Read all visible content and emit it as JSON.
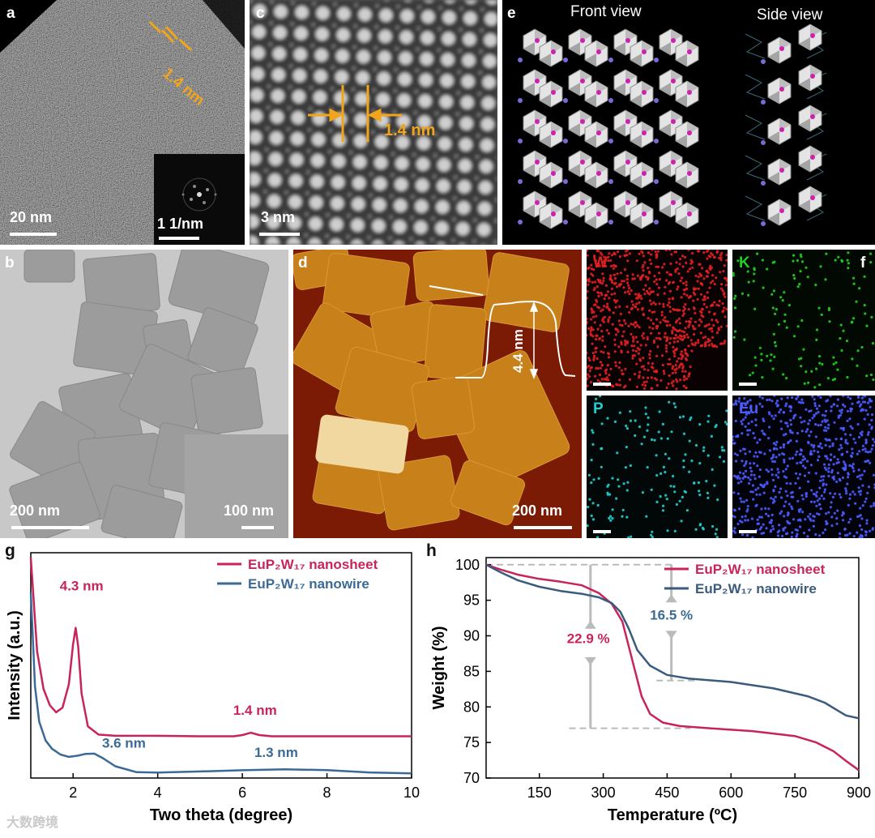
{
  "panels": {
    "a": {
      "label": "a",
      "scalebar": "20 nm",
      "spacing": "1.4 nm",
      "inset_scalebar": "1 1/nm"
    },
    "b": {
      "label": "b",
      "scalebar": "200 nm",
      "inset_scalebar": "100 nm"
    },
    "c": {
      "label": "c",
      "scalebar": "3 nm",
      "spacing": "1.4 nm"
    },
    "d": {
      "label": "d",
      "scalebar": "200 nm",
      "height": "4.4 nm"
    },
    "e": {
      "label": "e",
      "front_view": "Front view",
      "side_view": "Side view"
    },
    "f": {
      "label": "f",
      "elements": [
        "W",
        "K",
        "P",
        "Eu"
      ],
      "element_colors": [
        "#e02020",
        "#20d020",
        "#20d0d0",
        "#4a5cff"
      ]
    },
    "g": {
      "label": "g"
    },
    "h": {
      "label": "h"
    }
  },
  "chart_data": [
    {
      "type": "line",
      "panel": "g",
      "xlabel": "Two theta (degree)",
      "ylabel": "Intensity (a.u.)",
      "xlim": [
        1,
        10
      ],
      "xticks": [
        2,
        4,
        6,
        8,
        10
      ],
      "yticks": [],
      "legend_placement": "top-right",
      "series": [
        {
          "name": "EuP₂W₁₇ nanosheet",
          "color": "#c8245a",
          "x": [
            1.0,
            1.15,
            1.3,
            1.45,
            1.6,
            1.75,
            1.9,
            2.0,
            2.06,
            2.12,
            2.2,
            2.35,
            2.6,
            3.0,
            4.0,
            5.0,
            5.8,
            6.0,
            6.2,
            6.4,
            6.7,
            8.0,
            10.0
          ],
          "y": [
            100,
            60,
            44,
            37,
            34,
            36,
            46,
            63,
            70,
            62,
            42,
            28,
            24.5,
            24,
            24,
            23.8,
            23.8,
            24.3,
            25.3,
            24.3,
            23.8,
            23.8,
            23.8
          ]
        },
        {
          "name": "EuP₂W₁₇ nanowire",
          "color": "#3a6a95",
          "x": [
            1.0,
            1.1,
            1.2,
            1.35,
            1.5,
            1.7,
            1.9,
            2.1,
            2.3,
            2.5,
            2.7,
            3.0,
            3.5,
            4.0,
            5.0,
            6.0,
            7.0,
            8.0,
            9.0,
            10.0
          ],
          "y": [
            85,
            45,
            30,
            22,
            18.5,
            16,
            15,
            15.5,
            16.3,
            16.4,
            14.5,
            11,
            8.5,
            8.3,
            8.8,
            9.3,
            9.7,
            9.4,
            8.4,
            8.0
          ]
        }
      ],
      "annotations": [
        {
          "text": "4.3 nm",
          "x": 2.2,
          "y": 86,
          "color": "#c8245a"
        },
        {
          "text": "1.4 nm",
          "x": 6.3,
          "y": 33,
          "color": "#c8245a"
        },
        {
          "text": "3.6 nm",
          "x": 3.2,
          "y": 19,
          "color": "#3a6a95"
        },
        {
          "text": "1.3 nm",
          "x": 6.8,
          "y": 15,
          "color": "#3a6a95"
        }
      ]
    },
    {
      "type": "line",
      "panel": "h",
      "xlabel": "Temperature (ºC)",
      "ylabel": "Weight (%)",
      "xlim": [
        25,
        900
      ],
      "ylim": [
        70,
        101
      ],
      "xticks": [
        150,
        300,
        450,
        600,
        750,
        900
      ],
      "yticks": [
        70,
        75,
        80,
        85,
        90,
        95,
        100
      ],
      "legend_placement": "top-right",
      "series": [
        {
          "name": "EuP₂W₁₇ nanosheet",
          "color": "#c8245a",
          "x": [
            25,
            60,
            100,
            150,
            200,
            250,
            290,
            320,
            345,
            360,
            375,
            390,
            410,
            440,
            480,
            550,
            650,
            750,
            800,
            840,
            870,
            900
          ],
          "y": [
            100,
            99.3,
            98.6,
            98.0,
            97.6,
            97.1,
            96.0,
            94.5,
            92.0,
            88.5,
            85.0,
            81.5,
            79.0,
            77.8,
            77.3,
            77.0,
            76.6,
            75.9,
            75.0,
            73.8,
            72.4,
            71.1
          ]
        },
        {
          "name": "EuP₂W₁₇ nanowire",
          "color": "#3a5a7e",
          "x": [
            25,
            60,
            100,
            150,
            200,
            250,
            290,
            320,
            340,
            360,
            380,
            410,
            450,
            500,
            600,
            700,
            780,
            820,
            850,
            870,
            900
          ],
          "y": [
            100,
            98.9,
            97.8,
            96.9,
            96.3,
            95.9,
            95.4,
            94.6,
            93.4,
            91.0,
            88.0,
            85.8,
            84.5,
            84.0,
            83.5,
            82.6,
            81.5,
            80.6,
            79.5,
            78.8,
            78.4
          ]
        }
      ],
      "annotations": [
        {
          "text": "22.9 %",
          "x": 265,
          "y": 89,
          "color": "#c8245a"
        },
        {
          "text": "16.5 %",
          "x": 460,
          "y": 92.3,
          "color": "#3a6a95"
        }
      ],
      "reference_lines": [
        100,
        83.7,
        77
      ]
    }
  ],
  "watermark": "大数跨境"
}
